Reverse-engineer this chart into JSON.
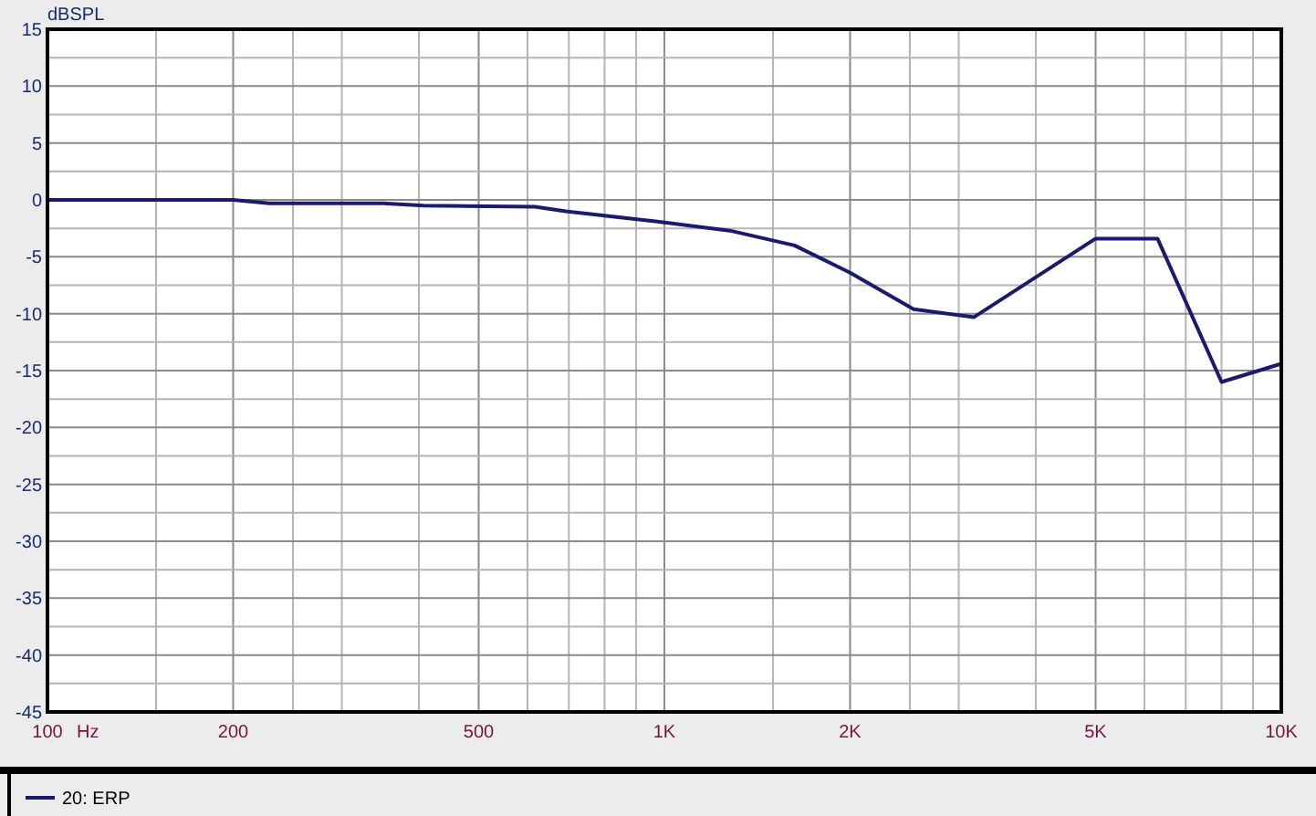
{
  "chart_data": {
    "type": "line",
    "xlabel": "Hz",
    "ylabel": "dBSPL",
    "log": "x",
    "grid": true,
    "legend": "bottom",
    "marker": "none",
    "line_style": "solid",
    "xlim": [
      100,
      10000
    ],
    "ylim": [
      -45,
      15
    ],
    "xticks": [
      100,
      {
        "value": 150,
        "label": null
      },
      200,
      {
        "value": 250,
        "label": null
      },
      {
        "value": 300,
        "label": null
      },
      {
        "value": 400,
        "label": null
      },
      500,
      {
        "value": 600,
        "label": null
      },
      {
        "value": 700,
        "label": null
      },
      {
        "value": 800,
        "label": null
      },
      {
        "value": 900,
        "label": null
      },
      {
        "value": 1000,
        "label": "1K"
      },
      {
        "value": 1500,
        "label": null
      },
      {
        "value": 2000,
        "label": "2K"
      },
      {
        "value": 2500,
        "label": null
      },
      {
        "value": 3000,
        "label": null
      },
      {
        "value": 4000,
        "label": null
      },
      {
        "value": 5000,
        "label": "5K"
      },
      {
        "value": 6000,
        "label": null
      },
      {
        "value": 7000,
        "label": null
      },
      {
        "value": 8000,
        "label": null
      },
      {
        "value": 9000,
        "label": null
      },
      {
        "value": 10000,
        "label": "10K"
      }
    ],
    "yticks": [
      15,
      {
        "value": 12.5,
        "label": null
      },
      10,
      {
        "value": 7.5,
        "label": null
      },
      5,
      {
        "value": 2.5,
        "label": null
      },
      0,
      {
        "value": -2.5,
        "label": null
      },
      -5,
      {
        "value": -7.5,
        "label": null
      },
      -10,
      {
        "value": -12.5,
        "label": null
      },
      -15,
      {
        "value": -17.5,
        "label": null
      },
      -20,
      {
        "value": -22.5,
        "label": null
      },
      -25,
      {
        "value": -27.5,
        "label": null
      },
      -30,
      {
        "value": -32.5,
        "label": null
      },
      -35,
      {
        "value": -37.5,
        "label": null
      },
      -40,
      {
        "value": -42.5,
        "label": null
      },
      -45
    ],
    "x": [
      100,
      200,
      229,
      350,
      407,
      617,
      692,
      974,
      1276,
      1625,
      2000,
      2535,
      3177,
      5000,
      6300,
      8000,
      10000
    ],
    "series": [
      {
        "name": "20: ERP",
        "color": "#1a1a6e",
        "values": [
          0,
          0,
          -0.3,
          -0.3,
          -0.5,
          -0.6,
          -1,
          -1.9,
          -2.7,
          -4,
          -6.4,
          -9.6,
          -10.3,
          -3.4,
          -3.4,
          -16,
          -14.4
        ]
      }
    ]
  }
}
